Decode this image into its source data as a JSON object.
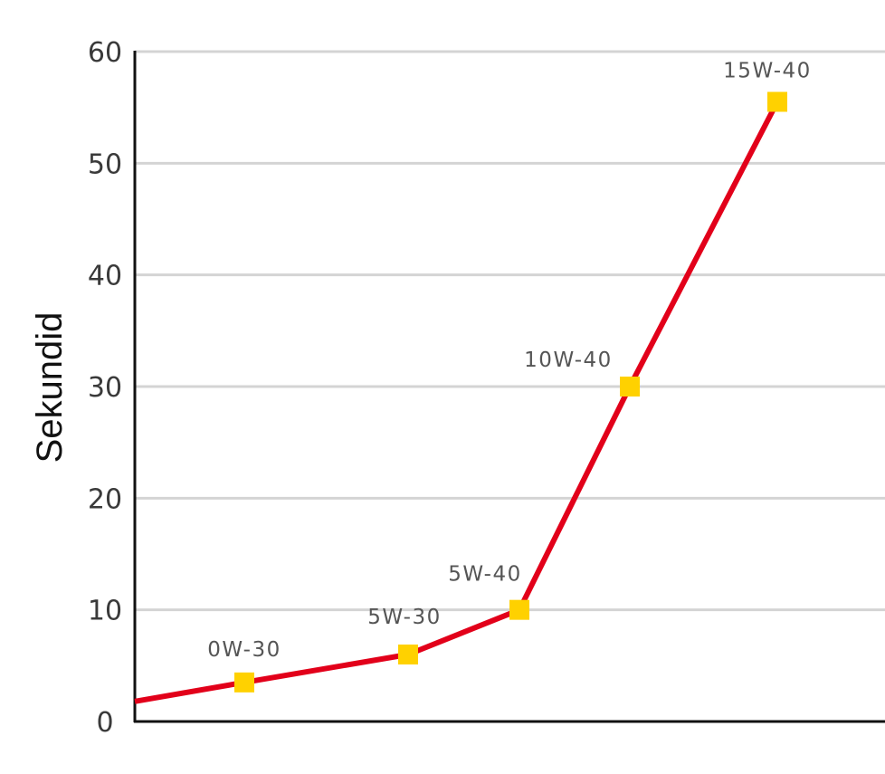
{
  "chart_data": {
    "type": "line",
    "title": "",
    "xlabel": "",
    "ylabel": "Sekundid",
    "ylim": [
      0,
      60
    ],
    "yticks": [
      0,
      10,
      20,
      30,
      40,
      50,
      60
    ],
    "grid": true,
    "colors": {
      "line": "#e2001a",
      "marker": "#ffd100",
      "grid": "#d4d4d4",
      "axis": "#111111"
    },
    "line_start_value": 1.8,
    "series": [
      {
        "points": [
          {
            "label": "0W-30",
            "y": 3.5
          },
          {
            "label": "5W-30",
            "y": 6
          },
          {
            "label": "5W-40",
            "y": 10
          },
          {
            "label": "10W-40",
            "y": 30
          },
          {
            "label": "15W-40",
            "y": 55.5
          }
        ]
      }
    ]
  }
}
